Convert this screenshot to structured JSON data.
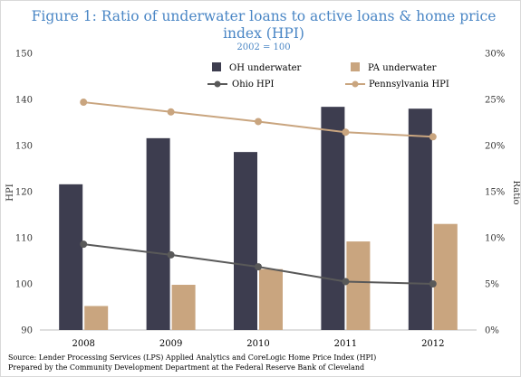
{
  "chart_data": {
    "type": "bar",
    "title_line1": "Figure 1: Ratio of underwater loans to active loans & home price",
    "title_line2": "index (HPI)",
    "subtitle": "2002 = 100",
    "categories": [
      "2008",
      "2009",
      "2010",
      "2011",
      "2012"
    ],
    "bar_series": [
      {
        "name": "OH underwater",
        "axis": "right",
        "color": "#3d3d4f",
        "values": [
          0.158,
          0.208,
          0.193,
          0.242,
          0.24
        ]
      },
      {
        "name": "PA underwater",
        "axis": "right",
        "color": "#c9a57f",
        "values": [
          0.026,
          0.049,
          0.066,
          0.096,
          0.115
        ]
      }
    ],
    "line_series": [
      {
        "name": "Ohio HPI",
        "axis": "left",
        "color": "#595959",
        "values": [
          108.6,
          106.3,
          103.7,
          100.5,
          100.0
        ]
      },
      {
        "name": "Pennsylvania HPI",
        "axis": "left",
        "color": "#c9a57f",
        "values": [
          139.4,
          137.3,
          135.2,
          132.9,
          131.9
        ]
      }
    ],
    "y_left": {
      "label": "HPI",
      "min": 90,
      "max": 150,
      "ticks": [
        90,
        100,
        110,
        120,
        130,
        140,
        150
      ]
    },
    "y_right": {
      "label": "Ratio",
      "min": 0,
      "max": 0.3,
      "ticks": [
        "0%",
        "5%",
        "10%",
        "15%",
        "20%",
        "25%",
        "30%"
      ]
    },
    "grid": false,
    "legend_position": "top"
  },
  "source_line1": "Source: Lender Processing Services (LPS) Applied Analytics and CoreLogic Home Price Index (HPI)",
  "source_line2": "Prepared by the Community Development Department  at the Federal Reserve Bank of Cleveland"
}
